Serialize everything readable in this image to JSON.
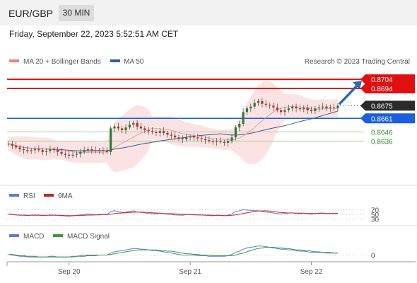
{
  "header": {
    "symbol": "EUR/GBP",
    "interval": "30 MIN"
  },
  "datetime": "Friday, September 22, 2023 5:52:51 AM CET",
  "credit": "Research © 2023 Trading Central",
  "colors": {
    "resistance": "#e01010",
    "pivot": "#1a5fe0",
    "support": "#2e8b2e",
    "current": "#2b2b2b",
    "ma50": "#3a5a9a",
    "bollinger": "#f08080",
    "rsi": "#5a7fd0",
    "rsi_ma": "#d02020",
    "macd": "#5a7fd0",
    "macd_signal": "#3a9a3a",
    "arrow": "#2a6ab8"
  },
  "chart_data": [
    {
      "type": "candlestick",
      "legend": [
        {
          "name": "MA 20 + Bollinger Bands",
          "color": "#f08080",
          "icon": "line-swatch"
        },
        {
          "name": "MA 50",
          "color": "#3a5a9a",
          "icon": "line-swatch"
        }
      ],
      "ylim": [
        0.8595,
        0.8715
      ],
      "levels": [
        {
          "value": 0.8704,
          "label": "0.8704",
          "kind": "resistance"
        },
        {
          "value": 0.8694,
          "label": "0.8694",
          "kind": "resistance"
        },
        {
          "value": 0.8675,
          "label": "0.8675",
          "kind": "current"
        },
        {
          "value": 0.8661,
          "label": "0.8661",
          "kind": "pivot"
        },
        {
          "value": 0.8646,
          "label": "0.8646",
          "kind": "support"
        },
        {
          "value": 0.8636,
          "label": "0.8636",
          "kind": "support"
        }
      ],
      "x_ticks": [
        {
          "index": 16,
          "label": "Sep 20"
        },
        {
          "index": 48,
          "label": "Sep 21"
        },
        {
          "index": 80,
          "label": "Sep 22"
        }
      ],
      "num_bars": 88,
      "closes": [
        0.8633,
        0.8631,
        0.8629,
        0.8627,
        0.8626,
        0.8625,
        0.8626,
        0.8627,
        0.8626,
        0.8624,
        0.8625,
        0.8627,
        0.8626,
        0.8624,
        0.8622,
        0.8621,
        0.862,
        0.8621,
        0.8622,
        0.8624,
        0.8626,
        0.8627,
        0.8626,
        0.8625,
        0.8626,
        0.8625,
        0.8624,
        0.865,
        0.8652,
        0.865,
        0.8648,
        0.8651,
        0.8654,
        0.8656,
        0.8652,
        0.865,
        0.8648,
        0.8647,
        0.8646,
        0.8645,
        0.8647,
        0.8645,
        0.8643,
        0.8642,
        0.864,
        0.8639,
        0.8638,
        0.864,
        0.8641,
        0.864,
        0.8639,
        0.8638,
        0.8637,
        0.8636,
        0.8635,
        0.8636,
        0.8635,
        0.8634,
        0.8636,
        0.864,
        0.8651,
        0.8655,
        0.8668,
        0.8672,
        0.8674,
        0.8678,
        0.868,
        0.8677,
        0.8676,
        0.8675,
        0.8673,
        0.867,
        0.8668,
        0.867,
        0.8672,
        0.8674,
        0.8672,
        0.8671,
        0.8673,
        0.867,
        0.8669,
        0.8672,
        0.8673,
        0.8674,
        0.8672,
        0.8673,
        0.8672,
        0.8675
      ],
      "forecast_arrow": {
        "from": 0.8675,
        "to": 0.8704
      }
    },
    {
      "type": "line",
      "legend": [
        {
          "name": "RSI",
          "color": "#5a7fd0",
          "icon": "line-swatch"
        },
        {
          "name": "9MA",
          "color": "#d02020",
          "icon": "line-swatch"
        }
      ],
      "ylim": [
        20,
        80
      ],
      "y_ticks": [
        {
          "value": 70,
          "label": "70"
        },
        {
          "value": 50,
          "label": "50"
        },
        {
          "value": 30,
          "label": "30"
        }
      ],
      "series": [
        {
          "name": "RSI",
          "values": [
            52,
            50,
            48,
            46,
            46,
            45,
            47,
            48,
            47,
            45,
            46,
            48,
            47,
            46,
            44,
            43,
            42,
            44,
            46,
            48,
            50,
            52,
            50,
            48,
            50,
            49,
            48,
            62,
            66,
            62,
            58,
            60,
            63,
            65,
            60,
            58,
            56,
            54,
            53,
            52,
            55,
            53,
            51,
            50,
            48,
            47,
            46,
            49,
            50,
            49,
            48,
            47,
            46,
            45,
            44,
            46,
            45,
            44,
            47,
            52,
            62,
            65,
            70,
            68,
            67,
            66,
            66,
            62,
            60,
            58,
            56,
            54,
            52,
            54,
            55,
            57,
            54,
            53,
            55,
            52,
            51,
            54,
            55,
            56,
            53,
            54,
            53,
            55
          ]
        },
        {
          "name": "9MA",
          "values": [
            50,
            49,
            48,
            47,
            47,
            46,
            46,
            46,
            46,
            46,
            46,
            46,
            46,
            46,
            46,
            45,
            45,
            45,
            45,
            45,
            46,
            47,
            47,
            48,
            48,
            49,
            49,
            51,
            53,
            55,
            56,
            57,
            58,
            59,
            60,
            60,
            59,
            58,
            57,
            56,
            55,
            54,
            53,
            53,
            52,
            51,
            50,
            49,
            49,
            48,
            48,
            48,
            47,
            47,
            46,
            46,
            46,
            45,
            45,
            46,
            48,
            51,
            54,
            57,
            60,
            62,
            64,
            65,
            65,
            64,
            62,
            60,
            58,
            57,
            56,
            56,
            55,
            55,
            55,
            54,
            54,
            54,
            54,
            54,
            54,
            54,
            54,
            54
          ]
        }
      ]
    },
    {
      "type": "line",
      "legend": [
        {
          "name": "MACD",
          "color": "#5a7fd0",
          "icon": "line-swatch"
        },
        {
          "name": "MACD Signal",
          "color": "#3a9a3a",
          "icon": "line-swatch"
        }
      ],
      "ylim": [
        -0.0006,
        0.0018
      ],
      "y_ticks": [
        {
          "value": 0,
          "label": "0"
        }
      ],
      "series": [
        {
          "name": "MACD",
          "values": [
            0.0001,
            0.0,
            -0.0001,
            -0.0002,
            -0.0002,
            -0.0003,
            -0.0003,
            -0.0003,
            -0.0003,
            -0.0003,
            -0.0003,
            -0.0002,
            -0.0002,
            -0.0003,
            -0.0003,
            -0.0003,
            -0.0003,
            -0.0002,
            -0.0002,
            -0.0001,
            0.0,
            0.0,
            0.0,
            0.0,
            0.0,
            0.0,
            0.0,
            0.0003,
            0.0005,
            0.0006,
            0.0007,
            0.0008,
            0.0009,
            0.001,
            0.001,
            0.0009,
            0.0009,
            0.0008,
            0.0007,
            0.0007,
            0.0006,
            0.0005,
            0.0004,
            0.0003,
            0.0002,
            0.0001,
            0.0,
            0.0,
            0.0,
            0.0,
            -0.0001,
            -0.0001,
            -0.0001,
            -0.0002,
            -0.0002,
            -0.0002,
            -0.0002,
            -0.0002,
            -0.0001,
            0.0001,
            0.0004,
            0.0006,
            0.0009,
            0.0011,
            0.0012,
            0.0013,
            0.0014,
            0.0014,
            0.0013,
            0.0012,
            0.0011,
            0.001,
            0.0009,
            0.0009,
            0.0008,
            0.0008,
            0.0007,
            0.0006,
            0.0006,
            0.0005,
            0.0004,
            0.0004,
            0.0004,
            0.0004,
            0.0003,
            0.0003,
            0.0003,
            0.0003
          ]
        },
        {
          "name": "MACD Signal",
          "values": [
            0.0001,
            0.0001,
            0.0,
            -0.0001,
            -0.0001,
            -0.0002,
            -0.0002,
            -0.0002,
            -0.0003,
            -0.0003,
            -0.0003,
            -0.0003,
            -0.0003,
            -0.0003,
            -0.0003,
            -0.0003,
            -0.0003,
            -0.0003,
            -0.0002,
            -0.0002,
            -0.0002,
            -0.0001,
            -0.0001,
            -0.0001,
            0.0,
            0.0,
            0.0,
            0.0001,
            0.0002,
            0.0003,
            0.0004,
            0.0005,
            0.0006,
            0.0007,
            0.0008,
            0.0008,
            0.0008,
            0.0008,
            0.0008,
            0.0008,
            0.0007,
            0.0007,
            0.0006,
            0.0006,
            0.0005,
            0.0004,
            0.0003,
            0.0002,
            0.0002,
            0.0001,
            0.0001,
            0.0,
            0.0,
            0.0,
            -0.0001,
            -0.0001,
            -0.0001,
            -0.0001,
            -0.0001,
            -0.0001,
            0.0,
            0.0002,
            0.0003,
            0.0005,
            0.0007,
            0.0009,
            0.001,
            0.0011,
            0.0012,
            0.0012,
            0.0012,
            0.0011,
            0.0011,
            0.001,
            0.001,
            0.0009,
            0.0008,
            0.0008,
            0.0007,
            0.0007,
            0.0006,
            0.0005,
            0.0005,
            0.0004,
            0.0004,
            0.0004,
            0.0003,
            0.0003
          ]
        }
      ]
    }
  ]
}
